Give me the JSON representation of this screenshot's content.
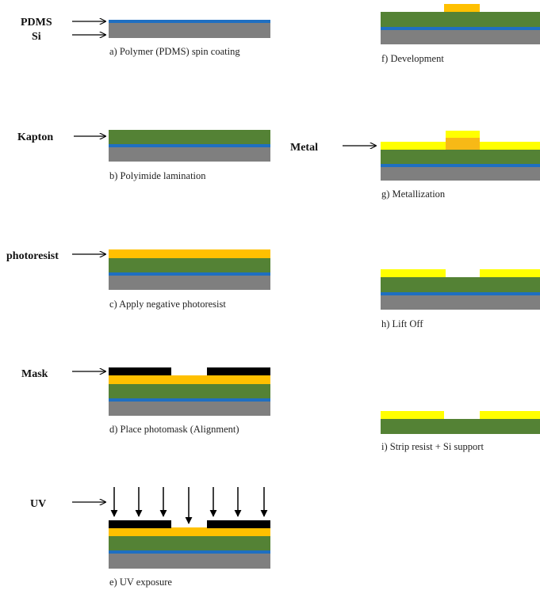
{
  "colors": {
    "si": "#7f7f7f",
    "pdms": "#1f6fc1",
    "kapton": "#548235",
    "photoresist": "#ffc000",
    "metal": "#ffff00",
    "mask": "#000000",
    "arrow": "#000000"
  },
  "layer_labels": {
    "pdms": "PDMS",
    "si": "Si",
    "kapton": "Kapton",
    "photoresist": "photoresist",
    "mask": "Mask",
    "uv": "UV",
    "metal": "Metal"
  },
  "steps": [
    {
      "id": "a",
      "caption": "a) Polymer (PDMS) spin coating"
    },
    {
      "id": "b",
      "caption": "b) Polyimide lamination"
    },
    {
      "id": "c",
      "caption": "c) Apply  negative photoresist"
    },
    {
      "id": "d",
      "caption": "d) Place photomask (Alignment)"
    },
    {
      "id": "e",
      "caption": "e) UV exposure"
    },
    {
      "id": "f",
      "caption": "f) Development"
    },
    {
      "id": "g",
      "caption": "g) Metallization"
    },
    {
      "id": "h",
      "caption": "h) Lift Off"
    },
    {
      "id": "i",
      "caption": "i) Strip resist + Si support"
    }
  ]
}
